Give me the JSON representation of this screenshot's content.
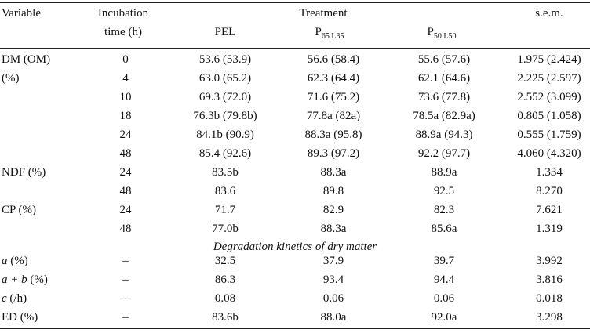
{
  "header": {
    "variable": "Variable",
    "incubation_line1": "Incubation",
    "incubation_line2": "time (h)",
    "treatment": "Treatment",
    "sem": "s.e.m.",
    "col_pel": "PEL",
    "col_p65_main": "P",
    "col_p65_sub": "65 L35",
    "col_p50_main": "P",
    "col_p50_sub": "50 L50"
  },
  "rows": [
    {
      "label": "DM (OM)",
      "time": "0",
      "pel": "53.6 (53.9)",
      "p65": "56.6 (58.4)",
      "p50": "55.6 (57.6)",
      "sem": "1.975 (2.424)"
    },
    {
      "label": "(%)",
      "time": "4",
      "pel": "63.0 (65.2)",
      "p65": "62.3 (64.4)",
      "p50": "62.1 (64.6)",
      "sem": "2.225 (2.597)"
    },
    {
      "label": "",
      "time": "10",
      "pel": "69.3 (72.0)",
      "p65": "71.6 (75.2)",
      "p50": "73.6 (77.8)",
      "sem": "2.552 (3.099)"
    },
    {
      "label": "",
      "time": "18",
      "pel": "76.3b (79.8b)",
      "p65": "77.8a (82a)",
      "p50": "78.5a (82.9a)",
      "sem": "0.805 (1.058)"
    },
    {
      "label": "",
      "time": "24",
      "pel": "84.1b (90.9)",
      "p65": "88.3a (95.8)",
      "p50": "88.9a (94.3)",
      "sem": "0.555 (1.759)"
    },
    {
      "label": "",
      "time": "48",
      "pel": "85.4 (92.6)",
      "p65": "89.3 (97.2)",
      "p50": "92.2 (97.7)",
      "sem": "4.060 (4.320)"
    },
    {
      "label": "NDF (%)",
      "time": "24",
      "pel": "83.5b",
      "p65": "88.3a",
      "p50": "88.9a",
      "sem": "1.334"
    },
    {
      "label": "",
      "time": "48",
      "pel": "83.6",
      "p65": "89.8",
      "p50": "92.5",
      "sem": "8.270"
    },
    {
      "label": "CP (%)",
      "time": "24",
      "pel": "71.7",
      "p65": "82.9",
      "p50": "82.3",
      "sem": "7.621"
    },
    {
      "label": "",
      "time": "48",
      "pel": "77.0b",
      "p65": "88.3a",
      "p50": "85.6a",
      "sem": "1.319"
    }
  ],
  "section_title": "Degradation kinetics of dry matter",
  "kinetics": [
    {
      "label_var": "a",
      "label_rest": " (%)",
      "time": "–",
      "pel": "32.5",
      "p65": "37.9",
      "p50": "39.7",
      "sem": "3.992"
    },
    {
      "label_var": "a + b",
      "label_rest": " (%)",
      "time": "–",
      "pel": "86.3",
      "p65": "93.4",
      "p50": "94.4",
      "sem": "3.816"
    },
    {
      "label_var": "c",
      "label_rest": " (/h)",
      "time": "–",
      "pel": "0.08",
      "p65": "0.06",
      "p50": "0.06",
      "sem": "0.018"
    },
    {
      "label_var": "",
      "label_rest": "ED (%)",
      "time": "–",
      "pel": "83.6b",
      "p65": "88.0a",
      "p50": "92.0a",
      "sem": "3.298"
    }
  ]
}
